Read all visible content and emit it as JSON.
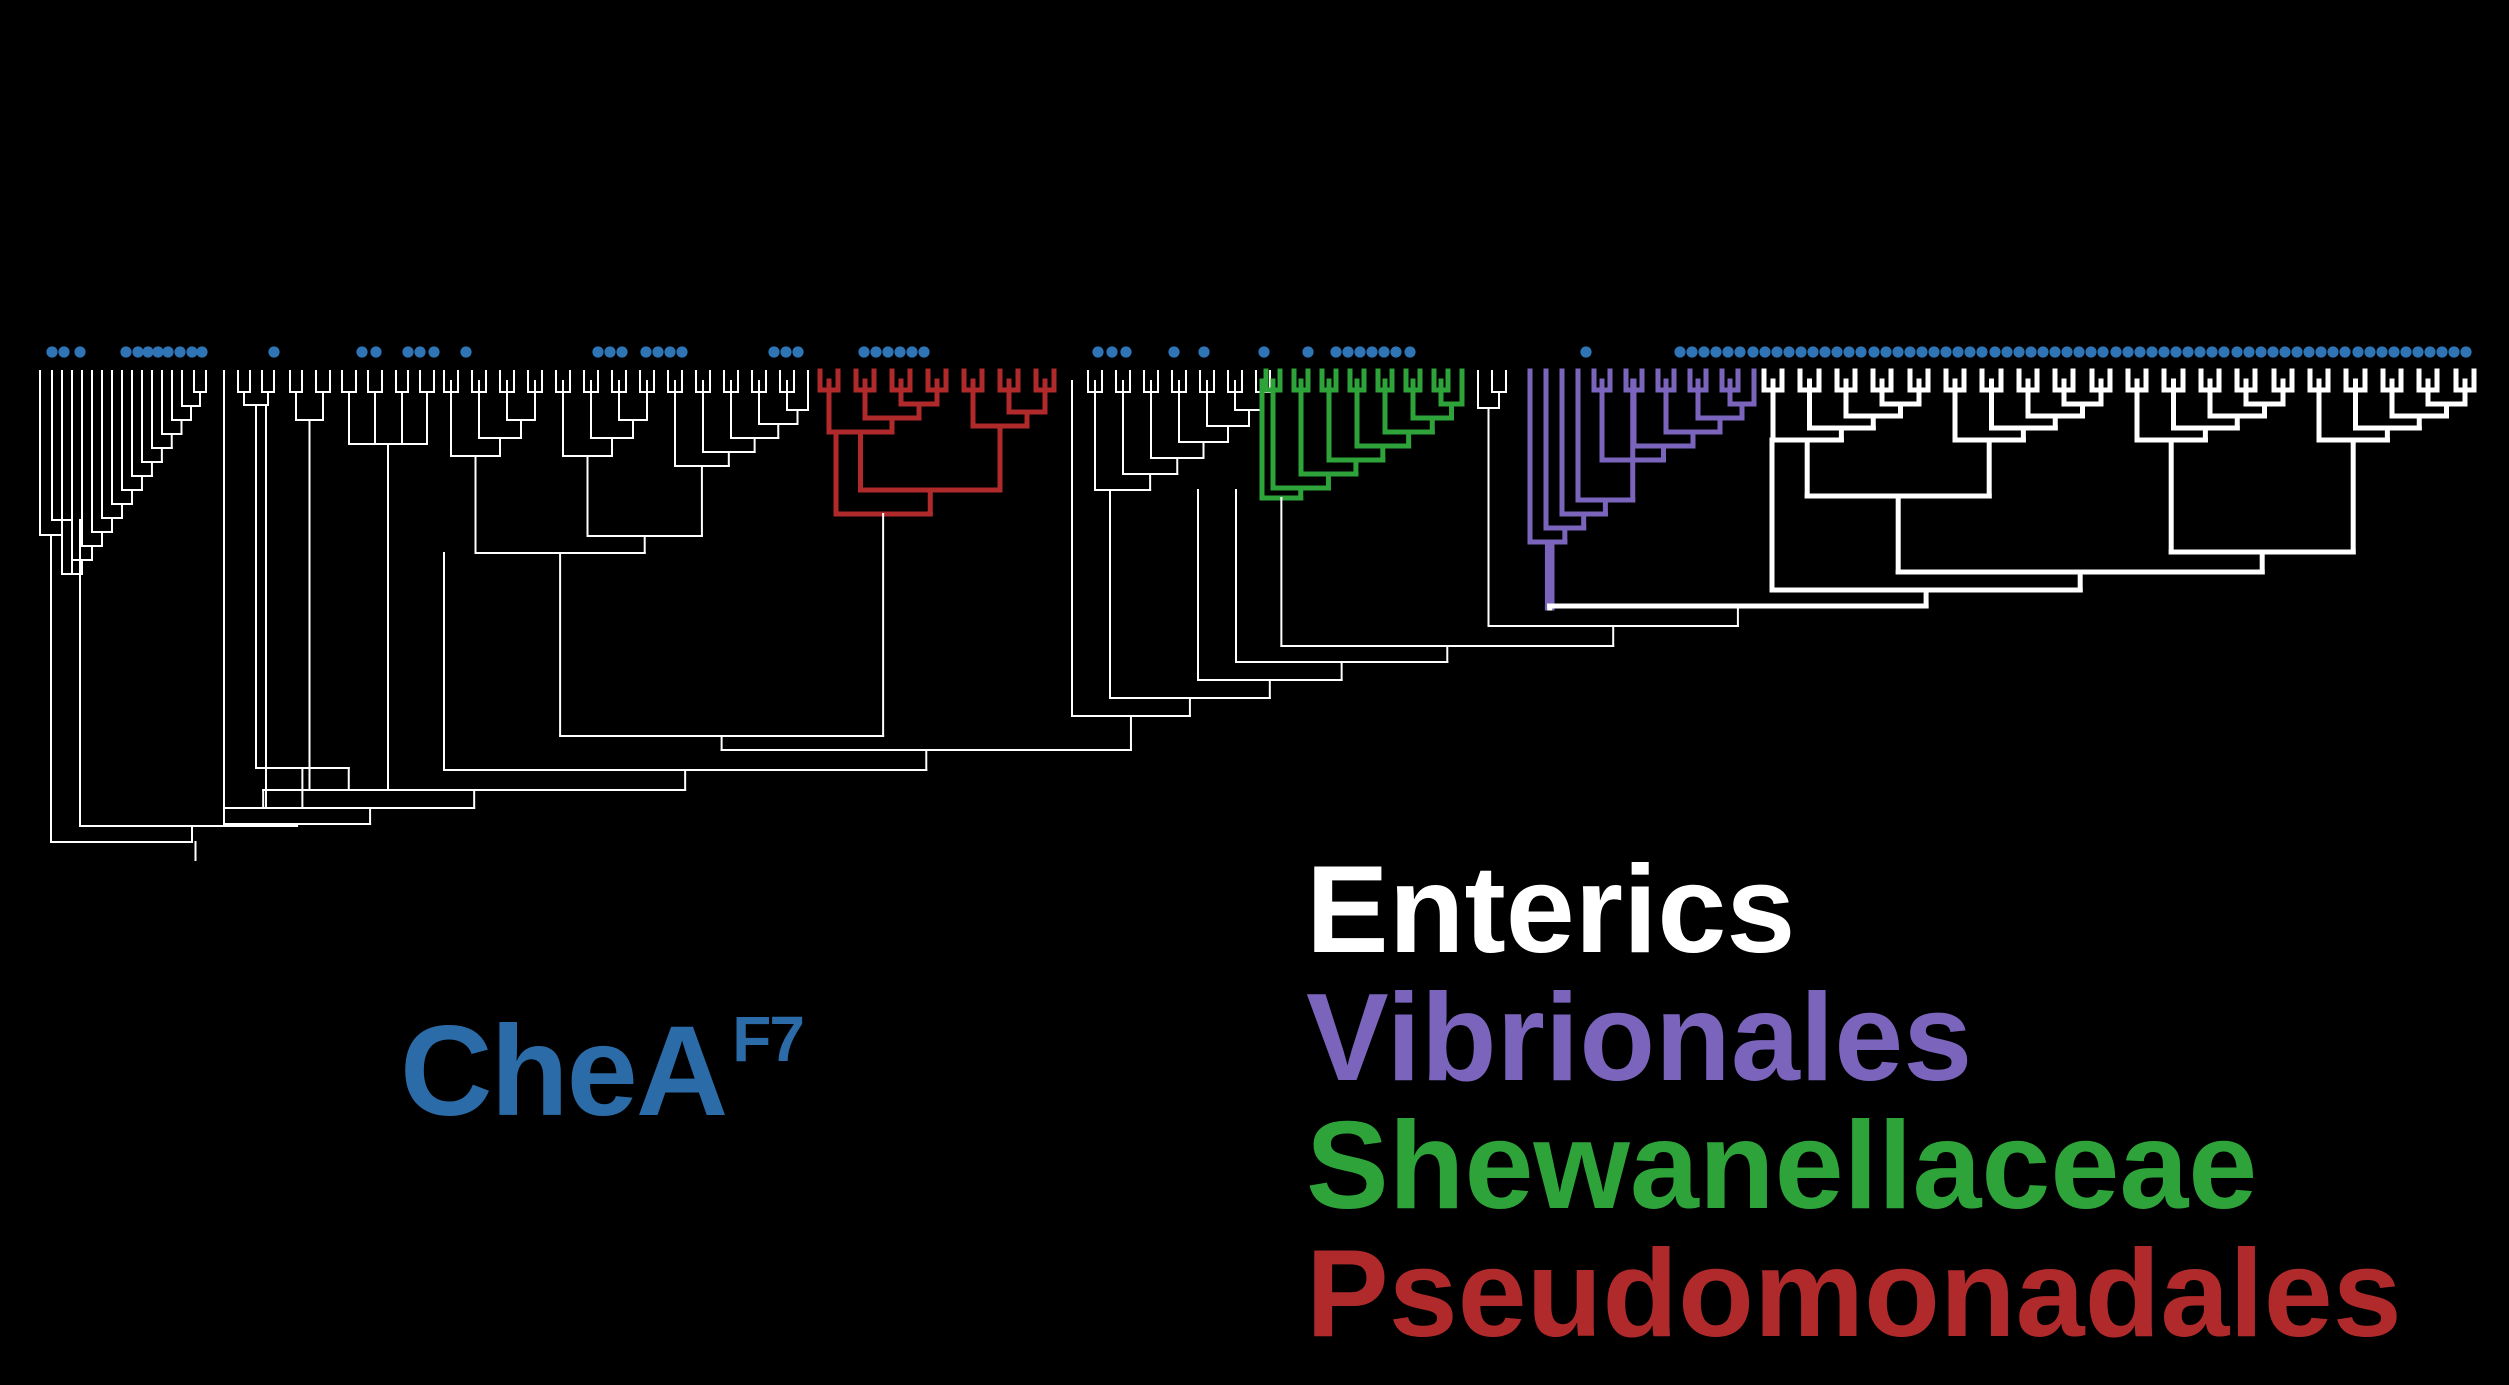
{
  "figure": {
    "protein_label": "CheA",
    "protein_superscript": "F7",
    "protein_color": "#2b6ca8",
    "background_color": "#000000",
    "marker_color": "#2f74b5",
    "default_branch_color": "#ffffff"
  },
  "legend": [
    {
      "label": "Enterics",
      "color": "#ffffff"
    },
    {
      "label": "Vibrionales",
      "color": "#7b64bb"
    },
    {
      "label": "Shewanellaceae",
      "color": "#2ea33a"
    },
    {
      "label": "Pseudomonadales",
      "color": "#b02a2b"
    }
  ],
  "tree": {
    "leaf_count": 115,
    "clades": [
      {
        "name": "Pseudomonadales",
        "color": "#b02a2b",
        "leaves": 12
      },
      {
        "name": "Shewanellaceae",
        "color": "#2ea33a",
        "leaves": 10
      },
      {
        "name": "Vibrionales",
        "color": "#7b64bb",
        "leaves": 11
      },
      {
        "name": "Enterics",
        "color": "#ffffff",
        "leaves": 39
      }
    ]
  }
}
